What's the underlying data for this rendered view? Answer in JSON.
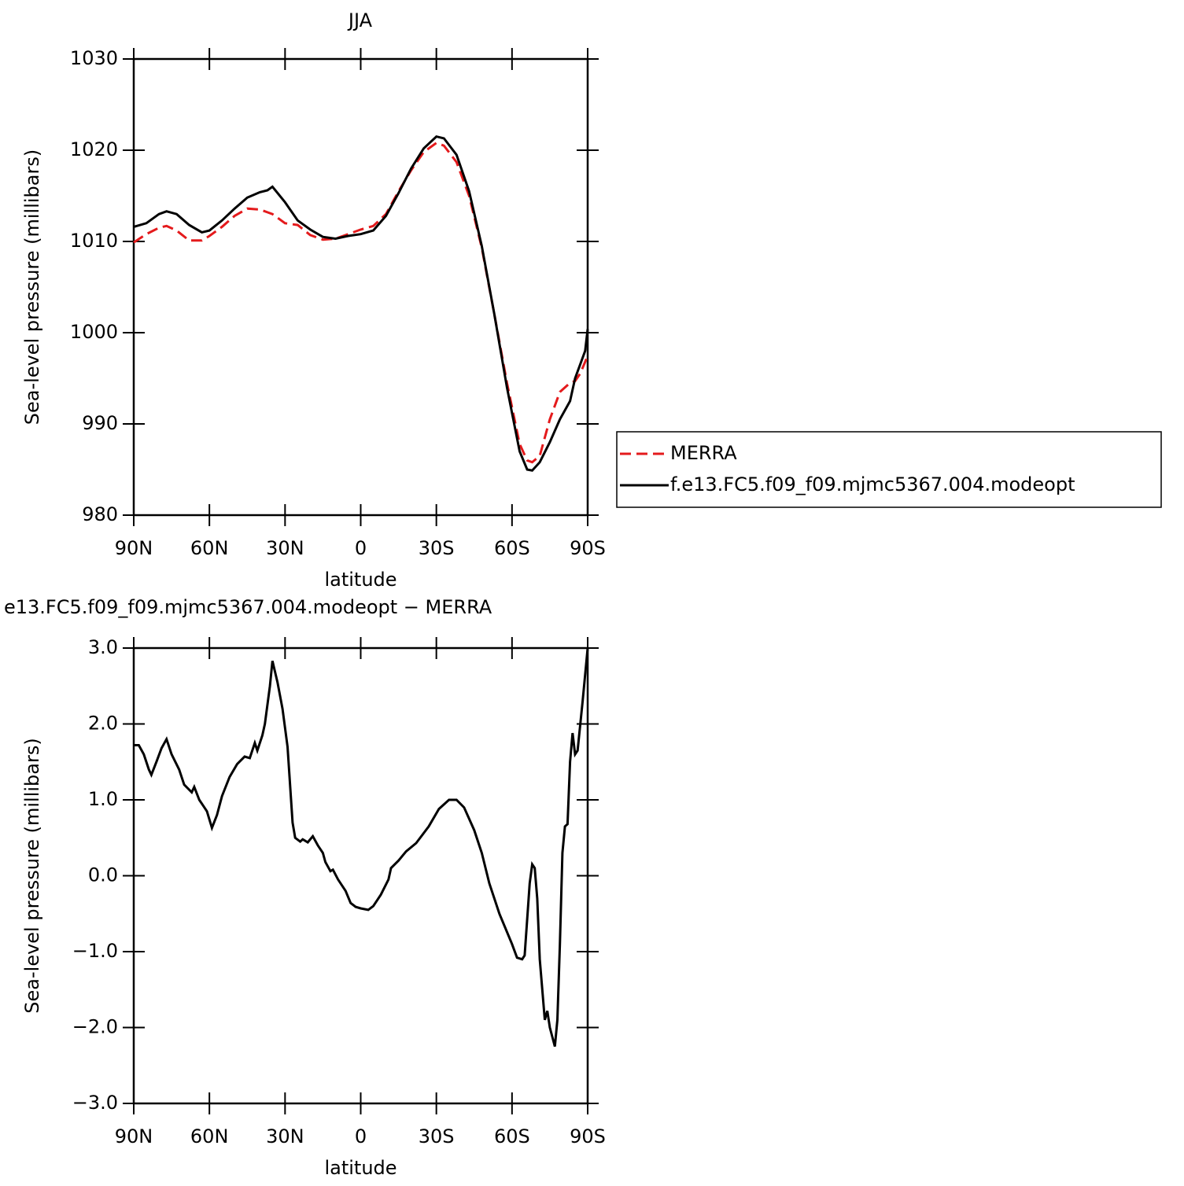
{
  "chart_data": [
    {
      "type": "line",
      "title": "JJA",
      "xlabel": "latitude",
      "ylabel": "Sea-level pressure (millibars)",
      "x": [
        90,
        85,
        80,
        77,
        73,
        68,
        63,
        60,
        55,
        50,
        45,
        40,
        37,
        35,
        30,
        25,
        20,
        15,
        10,
        5,
        0,
        -5,
        -10,
        -15,
        -20,
        -25,
        -30,
        -33,
        -38,
        -43,
        -48,
        -53,
        -58,
        -63,
        -66,
        -68,
        -71,
        -75,
        -79,
        -83,
        -85,
        -87,
        -89,
        -90
      ],
      "xlim": [
        90,
        -90
      ],
      "xticks": [
        {
          "value": 90,
          "label": "90N"
        },
        {
          "value": 60,
          "label": "60N"
        },
        {
          "value": 30,
          "label": "30N"
        },
        0,
        {
          "value": -30,
          "label": "30S"
        },
        {
          "value": -60,
          "label": "60S"
        },
        {
          "value": -90,
          "label": "90S"
        }
      ],
      "ylim": [
        980,
        1030
      ],
      "yticks": [
        980,
        990,
        1000,
        1010,
        1020,
        1030
      ],
      "legend": "outside right",
      "series": [
        {
          "name": "MERRA",
          "color": "#e41a1c",
          "linestyle": "dashed",
          "values": [
            1009.9,
            1010.8,
            1011.5,
            1011.7,
            1011.2,
            1010.1,
            1010.1,
            1010.6,
            1011.6,
            1012.8,
            1013.6,
            1013.5,
            1013.2,
            1013.0,
            1012.0,
            1011.8,
            1010.7,
            1010.2,
            1010.3,
            1010.8,
            1011.3,
            1011.7,
            1013.0,
            1015.5,
            1017.8,
            1019.8,
            1020.8,
            1020.5,
            1018.7,
            1015.0,
            1009.3,
            1002.0,
            994.5,
            987.8,
            986.0,
            985.8,
            986.5,
            990.5,
            993.5,
            994.5,
            994.7,
            995.5,
            996.8,
            997.5
          ]
        },
        {
          "name": "f.e13.FC5.f09_f09.mjmc5367.004.modeopt",
          "color": "#000000",
          "linestyle": "solid",
          "values": [
            1011.6,
            1012.0,
            1013.0,
            1013.3,
            1013.0,
            1011.8,
            1011.0,
            1011.2,
            1012.3,
            1013.6,
            1014.8,
            1015.4,
            1015.6,
            1016.0,
            1014.3,
            1012.3,
            1011.3,
            1010.5,
            1010.3,
            1010.6,
            1010.8,
            1011.2,
            1012.8,
            1015.3,
            1018.0,
            1020.2,
            1021.5,
            1021.3,
            1019.5,
            1015.5,
            1009.5,
            1002.0,
            994.0,
            987.0,
            985.0,
            984.9,
            985.8,
            988.0,
            990.5,
            992.5,
            995.0,
            996.5,
            998.0,
            1000.4
          ]
        }
      ]
    },
    {
      "type": "line",
      "title": "e13.FC5.f09_f09.mjmc5367.004.modeopt − MERRA",
      "xlabel": "latitude",
      "ylabel": "Sea-level pressure (millibars)",
      "x": [
        90,
        88,
        86,
        84,
        83,
        81,
        79,
        77,
        75,
        72,
        70,
        67,
        66,
        64,
        62,
        61,
        59,
        57,
        55,
        52,
        49,
        46,
        44,
        42,
        41,
        39,
        38,
        36,
        35,
        33,
        31,
        29,
        27,
        26,
        24,
        23,
        21,
        19,
        17,
        15,
        14,
        12,
        11,
        9,
        6,
        4,
        2,
        0,
        -3,
        -5,
        -8,
        -11,
        -12,
        -15,
        -18,
        -22,
        -27,
        -31,
        -35,
        -38,
        -41,
        -45,
        -48,
        -51,
        -55,
        -60,
        -62,
        -64,
        -65,
        -67,
        -68,
        -69,
        -70,
        -71,
        -73,
        -74,
        -75,
        -77,
        -78,
        -79,
        -80,
        -81,
        -82,
        -83,
        -84,
        -85,
        -86,
        -88,
        -90
      ],
      "xlim": [
        90,
        -90
      ],
      "xticks": [
        {
          "value": 90,
          "label": "90N"
        },
        {
          "value": 60,
          "label": "60N"
        },
        {
          "value": 30,
          "label": "30N"
        },
        0,
        {
          "value": -30,
          "label": "30S"
        },
        {
          "value": -60,
          "label": "60S"
        },
        {
          "value": -90,
          "label": "90S"
        }
      ],
      "ylim": [
        -3,
        3
      ],
      "yticks": [
        {
          "value": -3,
          "label": "−3.0"
        },
        {
          "value": -2,
          "label": "−2.0"
        },
        {
          "value": -1,
          "label": "−1.0"
        },
        {
          "value": 0,
          "label": "0.0"
        },
        {
          "value": 1,
          "label": "1.0"
        },
        {
          "value": 2,
          "label": "2.0"
        },
        {
          "value": 3,
          "label": "3.0"
        }
      ],
      "series": [
        {
          "color": "#000000",
          "linestyle": "solid",
          "values": [
            1.72,
            1.72,
            1.6,
            1.4,
            1.33,
            1.5,
            1.68,
            1.8,
            1.6,
            1.4,
            1.2,
            1.1,
            1.17,
            1.0,
            0.9,
            0.85,
            0.63,
            0.8,
            1.05,
            1.3,
            1.47,
            1.57,
            1.55,
            1.75,
            1.65,
            1.85,
            2.0,
            2.5,
            2.83,
            2.55,
            2.2,
            1.7,
            0.7,
            0.5,
            0.45,
            0.48,
            0.44,
            0.52,
            0.4,
            0.3,
            0.18,
            0.06,
            0.08,
            -0.05,
            -0.2,
            -0.36,
            -0.41,
            -0.43,
            -0.45,
            -0.4,
            -0.25,
            -0.05,
            0.1,
            0.2,
            0.32,
            0.43,
            0.65,
            0.88,
            1.0,
            1.0,
            0.9,
            0.6,
            0.3,
            -0.1,
            -0.5,
            -0.9,
            -1.08,
            -1.1,
            -1.05,
            -0.1,
            0.15,
            0.1,
            -0.3,
            -1.1,
            -1.9,
            -1.78,
            -2.0,
            -2.25,
            -1.9,
            -0.9,
            0.3,
            0.65,
            0.68,
            1.5,
            1.88,
            1.6,
            1.65,
            2.3,
            3.0
          ]
        }
      ]
    }
  ]
}
